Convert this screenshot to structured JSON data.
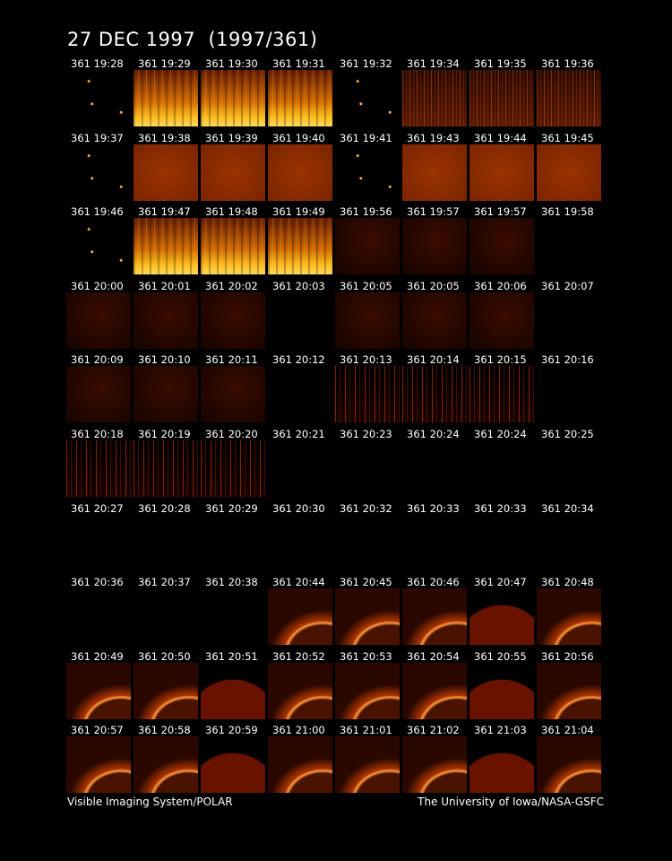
{
  "title": "27 DEC 1997  (1997/361)",
  "frames": [
    "361 19:28",
    "361 19:29",
    "361 19:30",
    "361 19:31",
    "361 19:32",
    "361 19:34",
    "361 19:35",
    "361 19:36",
    "361 19:37",
    "361 19:38",
    "361 19:39",
    "361 19:40",
    "361 19:41",
    "361 19:43",
    "361 19:44",
    "361 19:45",
    "361 19:46",
    "361 19:47",
    "361 19:48",
    "361 19:49",
    "361 19:56",
    "361 19:57",
    "361 19:57",
    "361 19:58",
    "361 20:00",
    "361 20:01",
    "361 20:02",
    "361 20:03",
    "361 20:05",
    "361 20:05",
    "361 20:06",
    "361 20:07",
    "361 20:09",
    "361 20:10",
    "361 20:11",
    "361 20:12",
    "361 20:13",
    "361 20:14",
    "361 20:15",
    "361 20:16",
    "361 20:18",
    "361 20:19",
    "361 20:20",
    "361 20:21",
    "361 20:23",
    "361 20:24",
    "361 20:24",
    "361 20:25",
    "361 20:27",
    "361 20:28",
    "361 20:29",
    "361 20:30",
    "361 20:32",
    "361 20:33",
    "361 20:33",
    "361 20:34",
    "361 20:36",
    "361 20:37",
    "361 20:38",
    "361 20:44",
    "361 20:45",
    "361 20:46",
    "361 20:47",
    "361 20:48",
    "361 20:49",
    "361 20:50",
    "361 20:51",
    "361 20:52",
    "361 20:53",
    "361 20:54",
    "361 20:55",
    "361 20:56",
    "361 20:57",
    "361 20:58",
    "361 20:59",
    "361 21:00",
    "361 21:01",
    "361 21:02",
    "361 21:03",
    "361 21:04"
  ],
  "footer": {
    "left": "Visible Imaging System/POLAR",
    "right": "The University of Iowa/NASA-GSFC"
  }
}
